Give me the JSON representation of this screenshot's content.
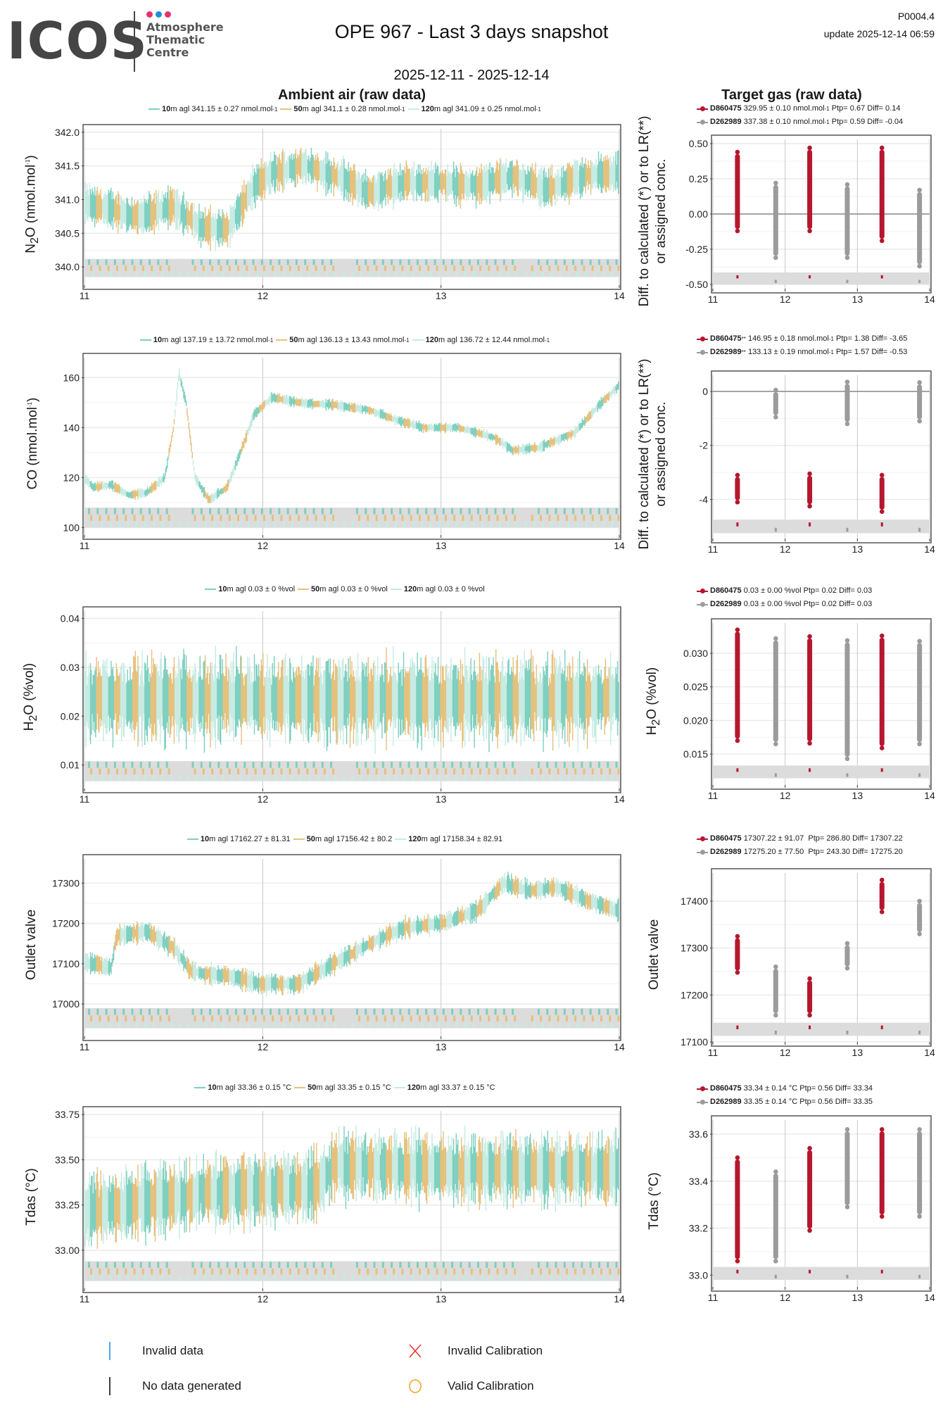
{
  "header": {
    "logo_text": "ICOS",
    "logo_sub": [
      "Atmosphere",
      "Thematic",
      "Centre"
    ],
    "logo_dot_colors": [
      "#e6316f",
      "#1b8fe1",
      "#e6316f"
    ],
    "title": "OPE 967 - Last 3 days snapshot",
    "date_range": "2025-12-11 - 2025-12-14",
    "code": "P0004.4",
    "update": "update  2025-12-14 06:59",
    "ambient_title": "Ambient air (raw data)",
    "target_title": "Target gas (raw data)"
  },
  "colors": {
    "h10": "#7dcfbf",
    "h50": "#e5c07b",
    "h120": "#c6ebe3",
    "tank1": "#b5172e",
    "tank2": "#9b9b9b",
    "flag_band": "#dcdcdc",
    "grid": "#ebebeb",
    "vgrid": "#c8c8c8"
  },
  "legend_bottom": [
    {
      "icon": "invalid-data-icon",
      "label": "Invalid data",
      "color": "#1b8fe1"
    },
    {
      "icon": "invalid-calibration-icon",
      "label": "Invalid Calibration",
      "color": "#e8332a"
    },
    {
      "icon": "no-data-icon",
      "label": "No data generated",
      "color": "#000000"
    },
    {
      "icon": "valid-calibration-icon",
      "label": "Valid Calibration",
      "color": "#f0a020"
    }
  ],
  "chart_data": [
    {
      "id": "n2o-ambient",
      "type": "line",
      "ylabel": "N2O (nmol.mol-1)",
      "ylabel_html": "N<sub>2</sub>O (nmol.mol<sup>-1</sup>)",
      "xticks": [
        "11",
        "12",
        "13",
        "14"
      ],
      "xlim": [
        11,
        14
      ],
      "ylim": [
        339.73,
        342.05
      ],
      "yticks": [
        340.0,
        340.5,
        341.0,
        341.5,
        342.0
      ],
      "ytick_labels": [
        "340.0",
        "340.5",
        "341.0",
        "341.5",
        "342.0"
      ],
      "flag_band": [
        339.85,
        340.12
      ],
      "legend": [
        {
          "series": "10",
          "text": "m agl 341.15 ± 0.27 nmol.mol",
          "sup": "-1"
        },
        {
          "series": "50",
          "text": "m agl 341.1 ± 0.28 nmol.mol",
          "sup": "-1"
        },
        {
          "series": "120",
          "text": "m agl 341.09 ± 0.25 nmol.mol",
          "sup": "-1"
        }
      ],
      "trend": [
        [
          11.0,
          340.95
        ],
        [
          11.15,
          340.85
        ],
        [
          11.3,
          340.75
        ],
        [
          11.5,
          340.9
        ],
        [
          11.65,
          340.6
        ],
        [
          11.8,
          340.55
        ],
        [
          11.95,
          341.2
        ],
        [
          12.05,
          341.4
        ],
        [
          12.25,
          341.5
        ],
        [
          12.45,
          341.3
        ],
        [
          12.6,
          341.1
        ],
        [
          12.8,
          341.25
        ],
        [
          13.0,
          341.25
        ],
        [
          13.2,
          341.2
        ],
        [
          13.4,
          341.35
        ],
        [
          13.6,
          341.15
        ],
        [
          13.8,
          341.35
        ],
        [
          14.0,
          341.4
        ]
      ],
      "amplitude": 0.28
    },
    {
      "id": "co-ambient",
      "type": "line",
      "ylabel": "CO (nmol.mol-1)",
      "ylabel_html": "CO (nmol.mol<sup>-1</sup>)",
      "xticks": [
        "11",
        "12",
        "13",
        "14"
      ],
      "xlim": [
        11,
        14
      ],
      "ylim": [
        97,
        168
      ],
      "yticks": [
        100,
        120,
        140,
        160
      ],
      "ytick_labels": [
        "100",
        "120",
        "140",
        "160"
      ],
      "flag_band": [
        100,
        108
      ],
      "legend": [
        {
          "series": "10",
          "text": "m agl 137.19 ± 13.72 nmol.mol",
          "sup": "-1"
        },
        {
          "series": "50",
          "text": "m agl 136.13 ± 13.43 nmol.mol",
          "sup": "-1"
        },
        {
          "series": "120",
          "text": "m agl 136.72 ± 12.44 nmol.mol",
          "sup": "-1"
        }
      ],
      "trend": [
        [
          11.0,
          120
        ],
        [
          11.05,
          116
        ],
        [
          11.15,
          117
        ],
        [
          11.25,
          113
        ],
        [
          11.35,
          114
        ],
        [
          11.45,
          120
        ],
        [
          11.5,
          140
        ],
        [
          11.53,
          162
        ],
        [
          11.57,
          150
        ],
        [
          11.62,
          120
        ],
        [
          11.7,
          111
        ],
        [
          11.8,
          116
        ],
        [
          11.9,
          135
        ],
        [
          11.95,
          145
        ],
        [
          12.05,
          152
        ],
        [
          12.2,
          150
        ],
        [
          12.4,
          149
        ],
        [
          12.6,
          147
        ],
        [
          12.75,
          143
        ],
        [
          12.9,
          140
        ],
        [
          13.1,
          140
        ],
        [
          13.3,
          136
        ],
        [
          13.4,
          131
        ],
        [
          13.55,
          132
        ],
        [
          13.75,
          138
        ],
        [
          13.9,
          150
        ],
        [
          14.0,
          157
        ]
      ],
      "amplitude": 2.0
    },
    {
      "id": "h2o-ambient",
      "type": "line",
      "ylabel": "H2O (%vol)",
      "ylabel_html": "H<sub>2</sub>O (%vol)",
      "xticks": [
        "11",
        "12",
        "13",
        "14"
      ],
      "xlim": [
        11,
        14
      ],
      "ylim": [
        0.0052,
        0.0415
      ],
      "yticks": [
        0.01,
        0.02,
        0.03,
        0.04
      ],
      "ytick_labels": [
        "0.01",
        "0.02",
        "0.03",
        "0.04"
      ],
      "flag_band": [
        0.0067,
        0.0108
      ],
      "legend": [
        {
          "series": "10",
          "text": "m agl 0.03 ± 0 %vol",
          "sup": ""
        },
        {
          "series": "50",
          "text": "m agl 0.03 ± 0 %vol",
          "sup": ""
        },
        {
          "series": "120",
          "text": "m agl 0.03 ± 0 %vol",
          "sup": ""
        }
      ],
      "trend": [
        [
          11.0,
          0.0235
        ],
        [
          14.0,
          0.0235
        ]
      ],
      "amplitude": 0.0085
    },
    {
      "id": "outlet-ambient",
      "type": "line",
      "ylabel": "Outlet valve",
      "ylabel_html": "Outlet valve",
      "xticks": [
        "11",
        "12",
        "13",
        "14"
      ],
      "xlim": [
        11,
        14
      ],
      "ylim": [
        16920,
        17360
      ],
      "yticks": [
        17000,
        17100,
        17200,
        17300
      ],
      "ytick_labels": [
        "17000",
        "17100",
        "17200",
        "17300"
      ],
      "flag_band": [
        16940,
        16990
      ],
      "legend": [
        {
          "series": "10",
          "text": "m agl 17162.27 ± 81.31",
          "sup": ""
        },
        {
          "series": "50",
          "text": "m agl 17156.42 ± 80.2",
          "sup": ""
        },
        {
          "series": "120",
          "text": "m agl 17158.34 ± 82.91",
          "sup": ""
        }
      ],
      "trend": [
        [
          11.0,
          17105
        ],
        [
          11.15,
          17090
        ],
        [
          11.18,
          17170
        ],
        [
          11.35,
          17180
        ],
        [
          11.5,
          17140
        ],
        [
          11.6,
          17080
        ],
        [
          11.8,
          17070
        ],
        [
          12.0,
          17050
        ],
        [
          12.2,
          17050
        ],
        [
          12.4,
          17100
        ],
        [
          12.6,
          17150
        ],
        [
          12.8,
          17190
        ],
        [
          13.0,
          17200
        ],
        [
          13.2,
          17230
        ],
        [
          13.35,
          17300
        ],
        [
          13.5,
          17280
        ],
        [
          13.65,
          17290
        ],
        [
          13.8,
          17260
        ],
        [
          14.0,
          17230
        ]
      ],
      "amplitude": 25
    },
    {
      "id": "tdas-ambient",
      "type": "line",
      "ylabel": "Tdas (°C)",
      "ylabel_html": "Tdas (°C)",
      "xticks": [
        "11",
        "12",
        "13",
        "14"
      ],
      "xlim": [
        11,
        14
      ],
      "ylim": [
        32.79,
        33.77
      ],
      "yticks": [
        33.0,
        33.25,
        33.5,
        33.75
      ],
      "ytick_labels": [
        "33.00",
        "33.25",
        "33.50",
        "33.75"
      ],
      "flag_band": [
        32.83,
        32.94
      ],
      "legend": [
        {
          "series": "10",
          "text": "m agl 33.36 ± 0.15 °C",
          "sup": ""
        },
        {
          "series": "50",
          "text": "m agl 33.35 ± 0.15 °C",
          "sup": ""
        },
        {
          "series": "120",
          "text": "m agl 33.37 ± 0.15 °C",
          "sup": ""
        }
      ],
      "trend": [
        [
          11.0,
          33.22
        ],
        [
          11.6,
          33.3
        ],
        [
          11.65,
          33.32
        ],
        [
          12.3,
          33.35
        ],
        [
          12.4,
          33.47
        ],
        [
          13.0,
          33.45
        ],
        [
          14.0,
          33.45
        ]
      ],
      "amplitude": 0.19
    },
    {
      "id": "n2o-target",
      "type": "scatter",
      "ylabel": "Diff. to calculated (*) or to LR(**) or assigned conc.",
      "ylabel_lines": [
        "Diff. to calculated (*) or to LR(**)",
        "or assigned conc."
      ],
      "xticks": [
        "11",
        "12",
        "13",
        "14"
      ],
      "xlim": [
        11,
        14
      ],
      "ylim": [
        -0.53,
        0.53
      ],
      "yticks": [
        -0.5,
        -0.25,
        0.0,
        0.25,
        0.5
      ],
      "ytick_labels": [
        "-0.50",
        "-0.25",
        "0.00",
        "0.25",
        "0.50"
      ],
      "zero_line": 0,
      "flag_band": [
        -0.5,
        -0.415
      ],
      "legend": [
        {
          "tank": "D860475",
          "suffix": "",
          "text": " 329.95 ± 0.10 nmol.mol",
          "sup": "-1",
          "rest": " Ptp= 0.67 Diff= 0.14"
        },
        {
          "tank": "D262989",
          "suffix": "",
          "text": " 337.38 ± 0.10 nmol.mol",
          "sup": "-1",
          "rest": " Ptp= 0.59 Diff= -0.04"
        }
      ],
      "clusters": [
        {
          "tank": "D860475",
          "x": 11.34,
          "min": -0.12,
          "max": 0.44
        },
        {
          "tank": "D262989",
          "x": 11.87,
          "min": -0.31,
          "max": 0.22
        },
        {
          "tank": "D860475",
          "x": 12.34,
          "min": -0.12,
          "max": 0.47
        },
        {
          "tank": "D262989",
          "x": 12.86,
          "min": -0.31,
          "max": 0.21
        },
        {
          "tank": "D860475",
          "x": 13.34,
          "min": -0.19,
          "max": 0.47
        },
        {
          "tank": "D262989",
          "x": 13.86,
          "min": -0.37,
          "max": 0.17
        }
      ]
    },
    {
      "id": "co-target",
      "type": "scatter",
      "ylabel": "Diff. to calculated (*) or to LR(**) or assigned conc.",
      "ylabel_lines": [
        "Diff. to calculated (*) or to LR(**)",
        "or assigned conc."
      ],
      "xticks": [
        "11",
        "12",
        "13",
        "14"
      ],
      "xlim": [
        11,
        14
      ],
      "ylim": [
        -5.45,
        0.6
      ],
      "yticks": [
        -4,
        -2,
        0
      ],
      "ytick_labels": [
        "-4",
        "-2",
        "0"
      ],
      "zero_line": 0,
      "flag_band": [
        -5.25,
        -4.75
      ],
      "legend": [
        {
          "tank": "D860475",
          "suffix": "**",
          "text": " 146.95 ± 0.18 nmol.mol",
          "sup": "-1",
          "rest": " Ptp= 1.38 Diff= -3.65"
        },
        {
          "tank": "D262989",
          "suffix": "**",
          "text": " 133.13 ± 0.19 nmol.mol",
          "sup": "-1",
          "rest": " Ptp= 1.57 Diff= -0.53"
        }
      ],
      "clusters": [
        {
          "tank": "D860475",
          "x": 11.34,
          "min": -4.1,
          "max": -3.1
        },
        {
          "tank": "D262989",
          "x": 11.87,
          "min": -0.95,
          "max": 0.05
        },
        {
          "tank": "D860475",
          "x": 12.34,
          "min": -4.25,
          "max": -3.05
        },
        {
          "tank": "D262989",
          "x": 12.86,
          "min": -1.2,
          "max": 0.35
        },
        {
          "tank": "D860475",
          "x": 13.34,
          "min": -4.45,
          "max": -3.1
        },
        {
          "tank": "D262989",
          "x": 13.86,
          "min": -1.1,
          "max": 0.33
        }
      ]
    },
    {
      "id": "h2o-target",
      "type": "scatter",
      "ylabel": "H2O (%vol)",
      "ylabel_html": "H<sub>2</sub>O (%vol)",
      "xticks": [
        "11",
        "12",
        "13",
        "14"
      ],
      "xlim": [
        11,
        14
      ],
      "ylim": [
        0.0104,
        0.0345
      ],
      "yticks": [
        0.015,
        0.02,
        0.025,
        0.03
      ],
      "ytick_labels": [
        "0.015",
        "0.020",
        "0.025",
        "0.030"
      ],
      "flag_band": [
        0.0114,
        0.0133
      ],
      "legend": [
        {
          "tank": "D860475",
          "suffix": "",
          "text": " 0.03 ± 0.00 %vol Ptp= 0.02 Diff= 0.03",
          "sup": "",
          "rest": ""
        },
        {
          "tank": "D262989",
          "suffix": "",
          "text": " 0.03 ± 0.00 %vol Ptp= 0.02 Diff= 0.03",
          "sup": "",
          "rest": ""
        }
      ],
      "clusters": [
        {
          "tank": "D860475",
          "x": 11.34,
          "min": 0.017,
          "max": 0.0335
        },
        {
          "tank": "D262989",
          "x": 11.87,
          "min": 0.0165,
          "max": 0.0322
        },
        {
          "tank": "D860475",
          "x": 12.34,
          "min": 0.0166,
          "max": 0.0325
        },
        {
          "tank": "D262989",
          "x": 12.86,
          "min": 0.0143,
          "max": 0.0319
        },
        {
          "tank": "D860475",
          "x": 13.34,
          "min": 0.0159,
          "max": 0.0326
        },
        {
          "tank": "D262989",
          "x": 13.86,
          "min": 0.0165,
          "max": 0.0318
        }
      ]
    },
    {
      "id": "outlet-target",
      "type": "scatter",
      "ylabel": "Outlet valve",
      "ylabel_html": "Outlet valve",
      "xticks": [
        "11",
        "12",
        "13",
        "14"
      ],
      "xlim": [
        11,
        14
      ],
      "ylim": [
        17100,
        17460
      ],
      "yticks": [
        17100,
        17200,
        17300,
        17400
      ],
      "ytick_labels": [
        "17100",
        "17200",
        "17300",
        "17400"
      ],
      "flag_band": [
        17113,
        17141
      ],
      "legend": [
        {
          "tank": "D860475",
          "suffix": "",
          "text": " 17307.22 ± 91.07  Ptp= 286.80 Diff= 17307.22",
          "sup": "",
          "rest": ""
        },
        {
          "tank": "D262989",
          "suffix": "",
          "text": " 17275.20 ± 77.50  Ptp= 243.30 Diff= 17275.20",
          "sup": "",
          "rest": ""
        }
      ],
      "clusters": [
        {
          "tank": "D860475",
          "x": 11.34,
          "min": 17248,
          "max": 17325
        },
        {
          "tank": "D262989",
          "x": 11.87,
          "min": 17157,
          "max": 17260
        },
        {
          "tank": "D860475",
          "x": 12.34,
          "min": 17157,
          "max": 17235
        },
        {
          "tank": "D262989",
          "x": 12.86,
          "min": 17257,
          "max": 17310
        },
        {
          "tank": "D860475",
          "x": 13.34,
          "min": 17377,
          "max": 17445
        },
        {
          "tank": "D262989",
          "x": 13.86,
          "min": 17330,
          "max": 17400
        }
      ]
    },
    {
      "id": "tdas-target",
      "type": "scatter",
      "ylabel": "Tdas (°C)",
      "ylabel_html": "Tdas (°C)",
      "xticks": [
        "11",
        "12",
        "13",
        "14"
      ],
      "xlim": [
        11,
        14
      ],
      "ylim": [
        32.95,
        33.66
      ],
      "yticks": [
        33.0,
        33.2,
        33.4,
        33.6
      ],
      "ytick_labels": [
        "33.0",
        "33.2",
        "33.4",
        "33.6"
      ],
      "flag_band": [
        32.98,
        33.035
      ],
      "legend": [
        {
          "tank": "D860475",
          "suffix": "",
          "text": " 33.34 ± 0.14 °C Ptp= 0.56 Diff= 33.34",
          "sup": "",
          "rest": ""
        },
        {
          "tank": "D262989",
          "suffix": "",
          "text": " 33.35 ± 0.14 °C Ptp= 0.56 Diff= 33.35",
          "sup": "",
          "rest": ""
        }
      ],
      "clusters": [
        {
          "tank": "D860475",
          "x": 11.34,
          "min": 33.06,
          "max": 33.5
        },
        {
          "tank": "D262989",
          "x": 11.87,
          "min": 33.06,
          "max": 33.44
        },
        {
          "tank": "D860475",
          "x": 12.34,
          "min": 33.19,
          "max": 33.54
        },
        {
          "tank": "D262989",
          "x": 12.86,
          "min": 33.29,
          "max": 33.62
        },
        {
          "tank": "D860475",
          "x": 13.34,
          "min": 33.25,
          "max": 33.62
        },
        {
          "tank": "D262989",
          "x": 13.86,
          "min": 33.25,
          "max": 33.62
        }
      ]
    }
  ]
}
